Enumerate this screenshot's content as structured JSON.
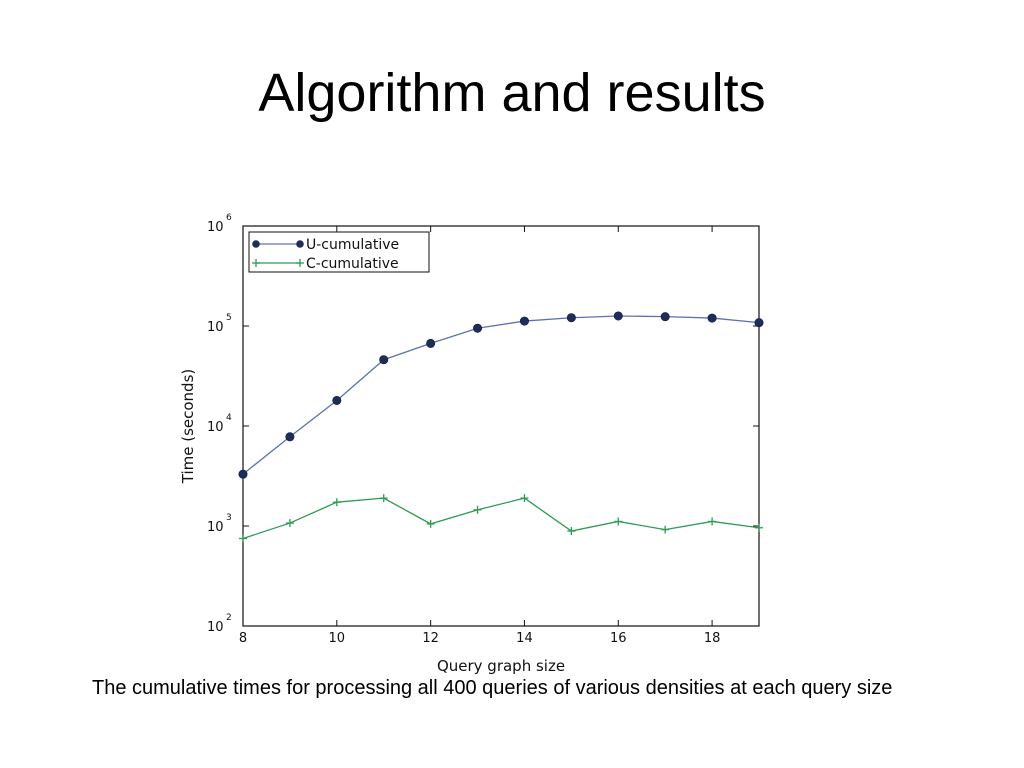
{
  "slide": {
    "title": "Algorithm and results",
    "caption": "The cumulative times for processing all 400 queries of various densities at each query size"
  },
  "chart_data": {
    "type": "line",
    "xlabel": "Query graph size",
    "ylabel": "Time (seconds)",
    "xlim": [
      8,
      19
    ],
    "ylim": [
      100,
      1000000
    ],
    "yscale": "log",
    "xticks": [
      8,
      10,
      12,
      14,
      16,
      18
    ],
    "yticks": [
      {
        "base": "10",
        "exp": "2",
        "value": 100
      },
      {
        "base": "10",
        "exp": "3",
        "value": 1000
      },
      {
        "base": "10",
        "exp": "4",
        "value": 10000
      },
      {
        "base": "10",
        "exp": "5",
        "value": 100000
      },
      {
        "base": "10",
        "exp": "6",
        "value": 1000000
      }
    ],
    "grid": false,
    "legend": "top-left",
    "x": [
      8,
      9,
      10,
      11,
      12,
      13,
      14,
      15,
      16,
      17,
      18,
      19
    ],
    "series": [
      {
        "name": "U-cumulative",
        "color": "#5c72b0",
        "marker_color": "#1f2d5a",
        "marker": "circle",
        "values": [
          3300,
          7800,
          18000,
          46000,
          67000,
          95000,
          112000,
          121000,
          126000,
          124000,
          120000,
          108000
        ]
      },
      {
        "name": "C-cumulative",
        "color": "#2e9a54",
        "marker_color": "#2e9a54",
        "marker": "plus",
        "values": [
          750,
          1070,
          1730,
          1900,
          1050,
          1450,
          1900,
          890,
          1110,
          920,
          1110,
          960
        ]
      }
    ]
  }
}
